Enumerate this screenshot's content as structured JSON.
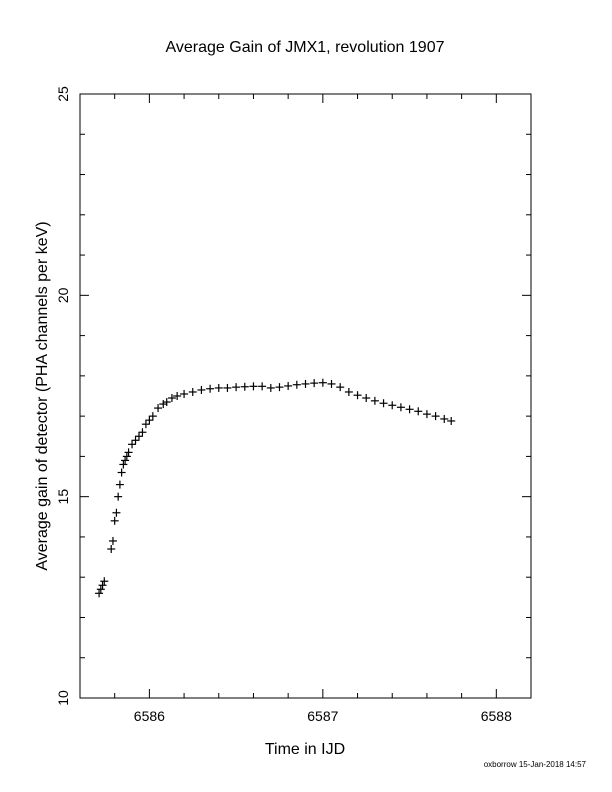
{
  "chart_data": {
    "type": "scatter",
    "title": "Average Gain of JMX1, revolution 1907",
    "xlabel": "Time in IJD",
    "ylabel": "Average gain of detector (PHA channels per keV)",
    "xlim": [
      6585.6,
      6588.2
    ],
    "ylim": [
      10,
      25
    ],
    "x_ticks": [
      "6586",
      "6587",
      "6588"
    ],
    "y_ticks": [
      "10",
      "15",
      "20",
      "25"
    ],
    "marker": "plus",
    "grid": false,
    "legend": "none",
    "series": [
      {
        "x": [
          6585.71,
          6585.72,
          6585.73,
          6585.74,
          6585.78,
          6585.79,
          6585.8,
          6585.81,
          6585.82,
          6585.83,
          6585.84,
          6585.85,
          6585.86,
          6585.87,
          6585.88,
          6585.9,
          6585.92,
          6585.94,
          6585.96,
          6585.98,
          6586.0,
          6586.02,
          6586.05,
          6586.08,
          6586.1,
          6586.13,
          6586.16,
          6586.2,
          6586.25,
          6586.3,
          6586.35,
          6586.4,
          6586.45,
          6586.5,
          6586.55,
          6586.6,
          6586.65,
          6586.7,
          6586.75,
          6586.8,
          6586.85,
          6586.9,
          6586.95,
          6587.0,
          6587.05,
          6587.1,
          6587.15,
          6587.2,
          6587.25,
          6587.3,
          6587.35,
          6587.4,
          6587.45,
          6587.5,
          6587.55,
          6587.6,
          6587.65,
          6587.7,
          6587.74
        ],
        "y": [
          12.6,
          12.7,
          12.8,
          12.9,
          13.7,
          13.9,
          14.4,
          14.6,
          15.0,
          15.3,
          15.6,
          15.8,
          15.9,
          16.0,
          16.1,
          16.3,
          16.4,
          16.5,
          16.6,
          16.8,
          16.9,
          17.0,
          17.2,
          17.3,
          17.35,
          17.45,
          17.5,
          17.55,
          17.6,
          17.65,
          17.68,
          17.7,
          17.7,
          17.72,
          17.73,
          17.74,
          17.74,
          17.7,
          17.72,
          17.75,
          17.78,
          17.8,
          17.82,
          17.83,
          17.8,
          17.72,
          17.6,
          17.52,
          17.45,
          17.38,
          17.32,
          17.27,
          17.22,
          17.17,
          17.12,
          17.05,
          17.0,
          16.93,
          16.88
        ]
      }
    ],
    "footer": "oxborrow 15-Jan-2018 14:57"
  }
}
